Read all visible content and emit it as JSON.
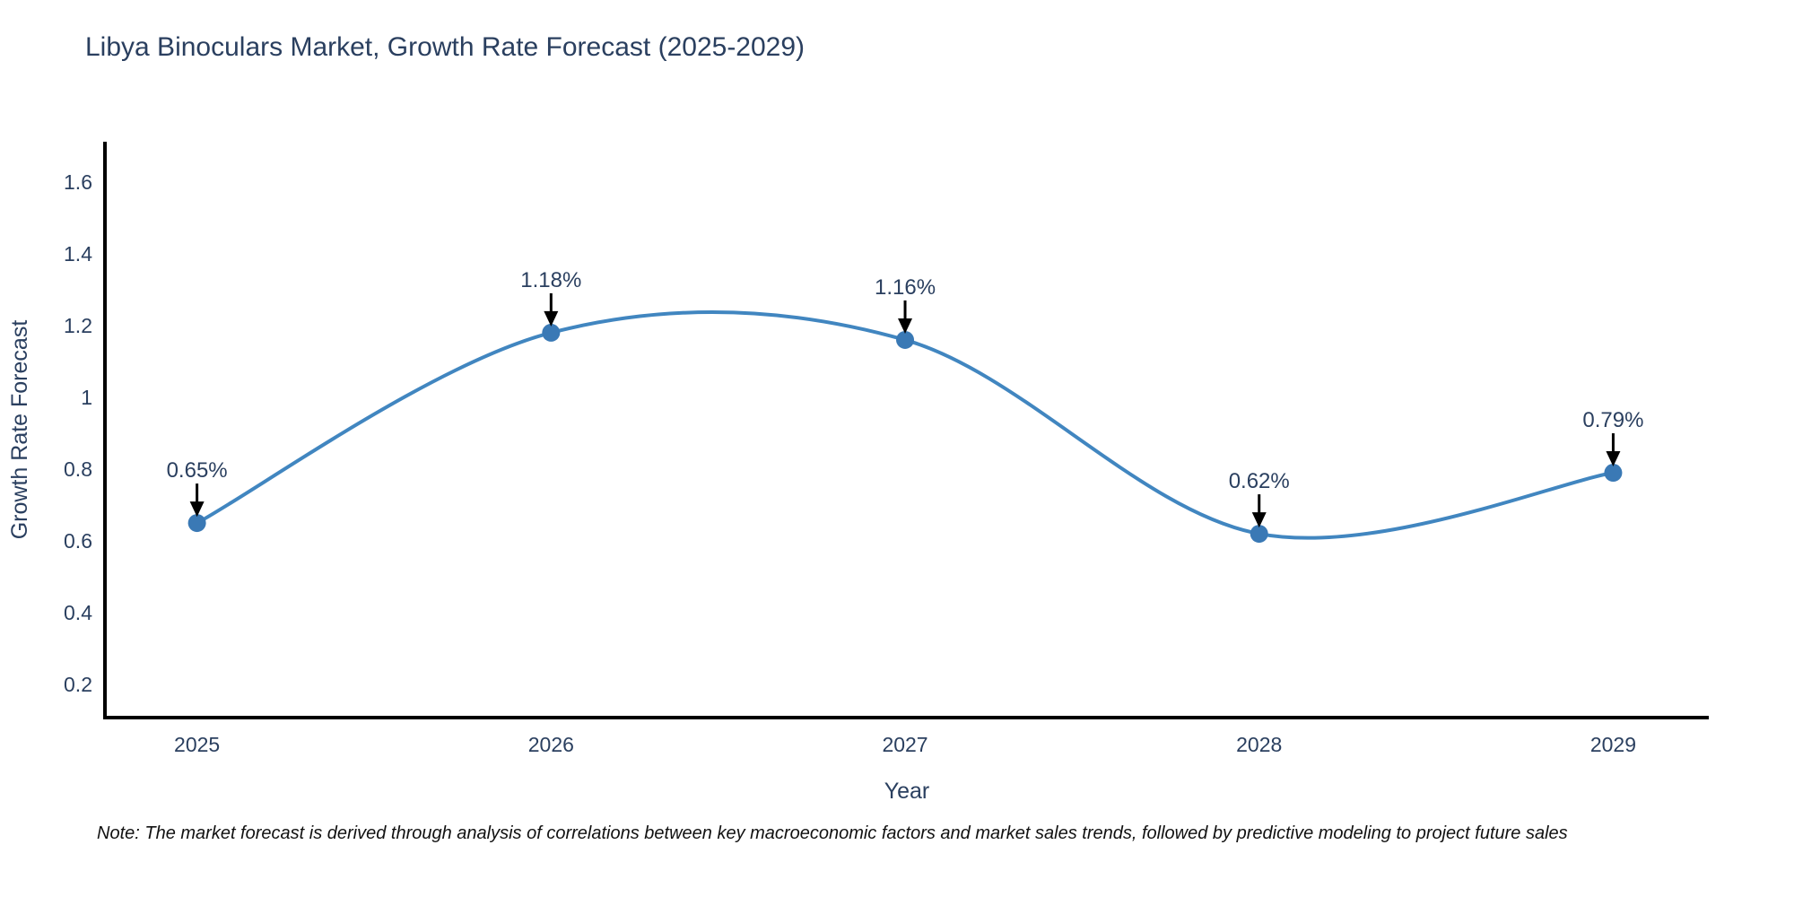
{
  "chart_data": {
    "type": "line",
    "line_shape": "spline",
    "title": "Libya Binoculars Market, Growth Rate Forecast (2025-2029)",
    "xlabel": "Year",
    "ylabel": "Growth Rate Forecast",
    "x": [
      2025,
      2026,
      2027,
      2028,
      2029
    ],
    "values": [
      0.65,
      1.18,
      1.16,
      0.62,
      0.79
    ],
    "point_labels": [
      "0.65%",
      "1.18%",
      "1.16%",
      "0.62%",
      "0.79%"
    ],
    "xticks": [
      2025,
      2026,
      2027,
      2028,
      2029
    ],
    "yticks": [
      0.2,
      0.4,
      0.6,
      0.8,
      1,
      1.2,
      1.4,
      1.6
    ],
    "xlim": [
      2024.74,
      2029.27
    ],
    "ylim": [
      0.108,
      1.712
    ],
    "grid": false,
    "legend": false,
    "line_color": "#4186c0",
    "marker_color": "#3a79b5",
    "axis_color": "#000000",
    "text_color": "#2a3f5f",
    "annotation_arrow_color": "#000000",
    "note": "Note: The market forecast is derived through analysis of correlations between key macroeconomic factors and market sales trends, followed by predictive modeling to project future sales"
  }
}
